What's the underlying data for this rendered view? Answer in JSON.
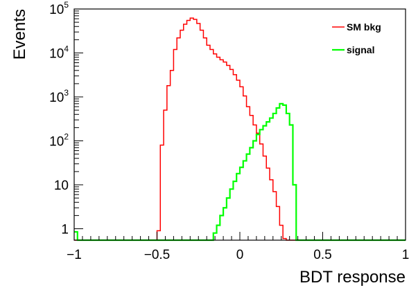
{
  "chart_data": {
    "type": "histogram",
    "xlabel": "BDT response",
    "ylabel": "Events",
    "xlim": [
      -1,
      1
    ],
    "ylim": [
      0.55,
      100000
    ],
    "y_scale": "log",
    "grid": false,
    "legend_position": "top-right",
    "x_ticks": [
      {
        "value": -1,
        "label": "−1"
      },
      {
        "value": -0.5,
        "label": "−0.5"
      },
      {
        "value": 0,
        "label": "0"
      },
      {
        "value": 0.5,
        "label": "0.5"
      },
      {
        "value": 1,
        "label": "1"
      }
    ],
    "y_ticks": [
      {
        "value": 1,
        "base": "1",
        "exp": ""
      },
      {
        "value": 10,
        "base": "10",
        "exp": ""
      },
      {
        "value": 100,
        "base": "10",
        "exp": "2"
      },
      {
        "value": 1000,
        "base": "10",
        "exp": "3"
      },
      {
        "value": 10000,
        "base": "10",
        "exp": "4"
      },
      {
        "value": 100000,
        "base": "10",
        "exp": "5"
      }
    ],
    "bins": {
      "start": -1,
      "width": 0.02,
      "count": 100
    },
    "series": [
      {
        "name": "SM bkg",
        "color": "#ff0000",
        "values": [
          0,
          0,
          0,
          0,
          0,
          0,
          0,
          0,
          0,
          0,
          0,
          0,
          0,
          0,
          0,
          0,
          0,
          0,
          0,
          0,
          0,
          0,
          0,
          0,
          0,
          0.9,
          80,
          500,
          1800,
          4000,
          12000,
          22000,
          33000,
          45000,
          55000,
          62000,
          58000,
          47000,
          33000,
          22000,
          15000,
          12000,
          9500,
          8000,
          7000,
          6200,
          5200,
          4200,
          3200,
          2400,
          1700,
          1050,
          600,
          380,
          230,
          150,
          85,
          45,
          24,
          13,
          7,
          3.2,
          1.2,
          0.6,
          0,
          0,
          0,
          0,
          0,
          0,
          0,
          0,
          0,
          0,
          0,
          0,
          0,
          0,
          0,
          0,
          0,
          0,
          0,
          0,
          0,
          0,
          0,
          0,
          0,
          0,
          0,
          0,
          0,
          0,
          0,
          0,
          0,
          0,
          0,
          0
        ]
      },
      {
        "name": "signal",
        "color": "#00ff00",
        "values": [
          0.85,
          0,
          0,
          0,
          0,
          0,
          0,
          0,
          0,
          0,
          0,
          0,
          0,
          0,
          0,
          0,
          0,
          0,
          0,
          0,
          0,
          0,
          0,
          0,
          0,
          0,
          0,
          0,
          0,
          0,
          0,
          0,
          0,
          0,
          0,
          0,
          0,
          0,
          0,
          0,
          0,
          0,
          0.8,
          1.2,
          2,
          3,
          5,
          8,
          12,
          18,
          25,
          35,
          50,
          70,
          100,
          140,
          180,
          220,
          270,
          330,
          420,
          560,
          700,
          650,
          420,
          230,
          10,
          0,
          0,
          0,
          0,
          0,
          0,
          0,
          0,
          0,
          0,
          0,
          0,
          0,
          0,
          0,
          0,
          0,
          0,
          0,
          0,
          0,
          0,
          0,
          0,
          0,
          0,
          0,
          0,
          0,
          0,
          0,
          0,
          0
        ]
      }
    ]
  }
}
